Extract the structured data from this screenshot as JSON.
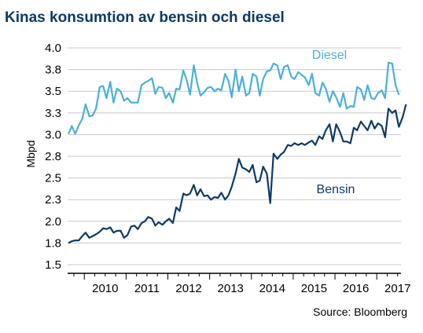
{
  "chart_data": {
    "type": "line",
    "title": "Kinas konsumtion av bensin och diesel",
    "ylabel": "Mbpd",
    "xlabel": "",
    "source": "Source: Bloomberg",
    "ylim": [
      1.5,
      4.0
    ],
    "xlim": [
      2009.6,
      2017.58
    ],
    "yticks": [
      "1.5",
      "1.8",
      "2.0",
      "2.3",
      "2.5",
      "2.8",
      "3.0",
      "3.3",
      "3.5",
      "3.8",
      "4.0"
    ],
    "ytick_values": [
      1.5,
      1.75,
      2.0,
      2.25,
      2.5,
      2.75,
      3.0,
      3.25,
      3.5,
      3.75,
      4.0
    ],
    "xticks": [
      "2010",
      "2011",
      "2012",
      "2013",
      "2014",
      "2015",
      "2016",
      "2017"
    ],
    "xtick_values": [
      2010,
      2011,
      2012,
      2013,
      2014,
      2015,
      2016,
      2017
    ],
    "grid": true,
    "series": [
      {
        "name": "Diesel",
        "color": "#4bb0d8",
        "points": [
          [
            2009.62,
            3.01
          ],
          [
            2009.7,
            3.1
          ],
          [
            2009.78,
            3.01
          ],
          [
            2009.87,
            3.11
          ],
          [
            2009.95,
            3.18
          ],
          [
            2010.03,
            3.35
          ],
          [
            2010.12,
            3.21
          ],
          [
            2010.2,
            3.22
          ],
          [
            2010.28,
            3.3
          ],
          [
            2010.37,
            3.55
          ],
          [
            2010.45,
            3.56
          ],
          [
            2010.53,
            3.42
          ],
          [
            2010.62,
            3.61
          ],
          [
            2010.7,
            3.37
          ],
          [
            2010.78,
            3.53
          ],
          [
            2010.87,
            3.5
          ],
          [
            2010.95,
            3.39
          ],
          [
            2011.03,
            3.42
          ],
          [
            2011.12,
            3.37
          ],
          [
            2011.2,
            3.37
          ],
          [
            2011.28,
            3.37
          ],
          [
            2011.37,
            3.57
          ],
          [
            2011.45,
            3.6
          ],
          [
            2011.53,
            3.62
          ],
          [
            2011.62,
            3.65
          ],
          [
            2011.7,
            3.47
          ],
          [
            2011.78,
            3.55
          ],
          [
            2011.87,
            3.54
          ],
          [
            2011.95,
            3.42
          ],
          [
            2012.03,
            3.48
          ],
          [
            2012.12,
            3.37
          ],
          [
            2012.2,
            3.53
          ],
          [
            2012.28,
            3.52
          ],
          [
            2012.37,
            3.74
          ],
          [
            2012.45,
            3.63
          ],
          [
            2012.53,
            3.46
          ],
          [
            2012.62,
            3.8
          ],
          [
            2012.7,
            3.6
          ],
          [
            2012.78,
            3.45
          ],
          [
            2012.87,
            3.49
          ],
          [
            2012.95,
            3.54
          ],
          [
            2013.03,
            3.55
          ],
          [
            2013.12,
            3.5
          ],
          [
            2013.2,
            3.53
          ],
          [
            2013.28,
            3.51
          ],
          [
            2013.37,
            3.7
          ],
          [
            2013.45,
            3.62
          ],
          [
            2013.53,
            3.43
          ],
          [
            2013.62,
            3.75
          ],
          [
            2013.7,
            3.5
          ],
          [
            2013.78,
            3.67
          ],
          [
            2013.87,
            3.45
          ],
          [
            2013.95,
            3.48
          ],
          [
            2014.03,
            3.7
          ],
          [
            2014.12,
            3.67
          ],
          [
            2014.2,
            3.45
          ],
          [
            2014.28,
            3.64
          ],
          [
            2014.37,
            3.73
          ],
          [
            2014.45,
            3.74
          ],
          [
            2014.53,
            3.82
          ],
          [
            2014.62,
            3.8
          ],
          [
            2014.7,
            3.64
          ],
          [
            2014.78,
            3.78
          ],
          [
            2014.87,
            3.8
          ],
          [
            2014.95,
            3.67
          ],
          [
            2015.03,
            3.64
          ],
          [
            2015.12,
            3.72
          ],
          [
            2015.2,
            3.69
          ],
          [
            2015.28,
            3.66
          ],
          [
            2015.37,
            3.57
          ],
          [
            2015.45,
            3.7
          ],
          [
            2015.53,
            3.48
          ],
          [
            2015.62,
            3.45
          ],
          [
            2015.7,
            3.6
          ],
          [
            2015.78,
            3.53
          ],
          [
            2015.87,
            3.38
          ],
          [
            2015.95,
            3.5
          ],
          [
            2016.03,
            3.43
          ],
          [
            2016.12,
            3.32
          ],
          [
            2016.2,
            3.48
          ],
          [
            2016.28,
            3.3
          ],
          [
            2016.37,
            3.33
          ],
          [
            2016.45,
            3.32
          ],
          [
            2016.53,
            3.55
          ],
          [
            2016.62,
            3.52
          ],
          [
            2016.7,
            3.4
          ],
          [
            2016.78,
            3.57
          ],
          [
            2016.87,
            3.42
          ],
          [
            2016.95,
            3.41
          ],
          [
            2017.03,
            3.48
          ],
          [
            2017.12,
            3.51
          ],
          [
            2017.2,
            3.42
          ],
          [
            2017.28,
            3.83
          ],
          [
            2017.37,
            3.82
          ],
          [
            2017.45,
            3.57
          ],
          [
            2017.53,
            3.46
          ]
        ]
      },
      {
        "name": "Bensin",
        "color": "#0d3b66",
        "points": [
          [
            2009.62,
            1.75
          ],
          [
            2009.7,
            1.77
          ],
          [
            2009.78,
            1.78
          ],
          [
            2009.87,
            1.78
          ],
          [
            2009.95,
            1.83
          ],
          [
            2010.03,
            1.87
          ],
          [
            2010.12,
            1.81
          ],
          [
            2010.2,
            1.83
          ],
          [
            2010.28,
            1.85
          ],
          [
            2010.37,
            1.88
          ],
          [
            2010.45,
            1.92
          ],
          [
            2010.53,
            1.91
          ],
          [
            2010.62,
            1.93
          ],
          [
            2010.7,
            1.87
          ],
          [
            2010.78,
            1.89
          ],
          [
            2010.87,
            1.89
          ],
          [
            2010.95,
            1.81
          ],
          [
            2011.03,
            1.84
          ],
          [
            2011.12,
            1.94
          ],
          [
            2011.2,
            1.95
          ],
          [
            2011.28,
            1.91
          ],
          [
            2011.37,
            1.98
          ],
          [
            2011.45,
            2.0
          ],
          [
            2011.53,
            2.05
          ],
          [
            2011.62,
            2.03
          ],
          [
            2011.7,
            1.95
          ],
          [
            2011.78,
            1.99
          ],
          [
            2011.87,
            1.96
          ],
          [
            2011.95,
            2.0
          ],
          [
            2012.03,
            2.03
          ],
          [
            2012.12,
            1.98
          ],
          [
            2012.2,
            2.16
          ],
          [
            2012.28,
            2.12
          ],
          [
            2012.37,
            2.32
          ],
          [
            2012.45,
            2.3
          ],
          [
            2012.53,
            2.32
          ],
          [
            2012.62,
            2.42
          ],
          [
            2012.7,
            2.3
          ],
          [
            2012.78,
            2.37
          ],
          [
            2012.87,
            2.29
          ],
          [
            2012.95,
            2.3
          ],
          [
            2013.03,
            2.25
          ],
          [
            2013.12,
            2.28
          ],
          [
            2013.2,
            2.27
          ],
          [
            2013.28,
            2.33
          ],
          [
            2013.37,
            2.25
          ],
          [
            2013.45,
            2.3
          ],
          [
            2013.53,
            2.4
          ],
          [
            2013.62,
            2.55
          ],
          [
            2013.7,
            2.72
          ],
          [
            2013.78,
            2.62
          ],
          [
            2013.87,
            2.6
          ],
          [
            2013.95,
            2.57
          ],
          [
            2014.03,
            2.65
          ],
          [
            2014.12,
            2.45
          ],
          [
            2014.2,
            2.47
          ],
          [
            2014.28,
            2.63
          ],
          [
            2014.37,
            2.55
          ],
          [
            2014.45,
            2.21
          ],
          [
            2014.53,
            2.78
          ],
          [
            2014.62,
            2.72
          ],
          [
            2014.7,
            2.77
          ],
          [
            2014.78,
            2.8
          ],
          [
            2014.87,
            2.88
          ],
          [
            2014.95,
            2.87
          ],
          [
            2015.03,
            2.9
          ],
          [
            2015.12,
            2.88
          ],
          [
            2015.2,
            2.9
          ],
          [
            2015.28,
            2.88
          ],
          [
            2015.37,
            2.91
          ],
          [
            2015.45,
            2.93
          ],
          [
            2015.53,
            2.88
          ],
          [
            2015.62,
            2.98
          ],
          [
            2015.7,
            2.95
          ],
          [
            2015.78,
            3.05
          ],
          [
            2015.87,
            3.12
          ],
          [
            2015.95,
            2.92
          ],
          [
            2016.03,
            3.12
          ],
          [
            2016.12,
            3.03
          ],
          [
            2016.2,
            2.92
          ],
          [
            2016.28,
            2.92
          ],
          [
            2016.37,
            2.9
          ],
          [
            2016.45,
            3.08
          ],
          [
            2016.53,
            3.05
          ],
          [
            2016.62,
            3.15
          ],
          [
            2016.7,
            3.1
          ],
          [
            2016.78,
            3.05
          ],
          [
            2016.87,
            3.16
          ],
          [
            2016.95,
            3.07
          ],
          [
            2017.03,
            3.13
          ],
          [
            2017.12,
            3.1
          ],
          [
            2017.2,
            2.97
          ],
          [
            2017.28,
            3.3
          ],
          [
            2017.37,
            3.25
          ],
          [
            2017.45,
            3.28
          ],
          [
            2017.53,
            3.09
          ],
          [
            2017.62,
            3.2
          ],
          [
            2017.7,
            3.35
          ]
        ]
      }
    ]
  }
}
